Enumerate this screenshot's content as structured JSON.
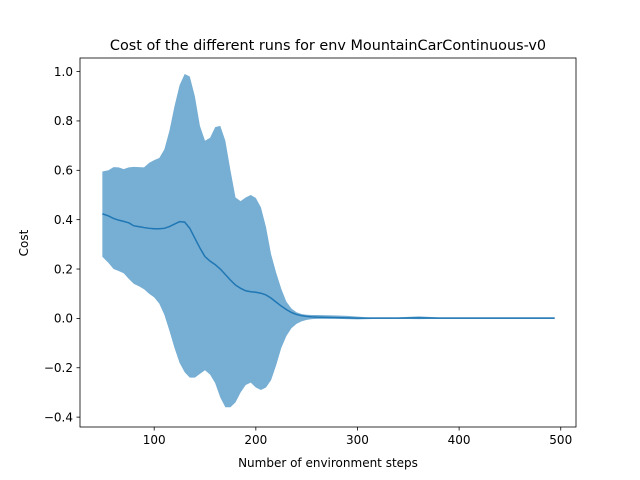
{
  "chart_data": {
    "type": "area",
    "title": "Cost of the different runs for env MountainCarContinuous-v0",
    "xlabel": "Number of environment steps",
    "ylabel": "Cost",
    "xlim": [
      27,
      515
    ],
    "ylim": [
      -0.44,
      1.055
    ],
    "xticks": [
      100,
      200,
      300,
      400,
      500
    ],
    "yticks": [
      -0.4,
      -0.2,
      0.0,
      0.2,
      0.4,
      0.6,
      0.8,
      1.0
    ],
    "grid": false,
    "legend": "none",
    "colors": {
      "line": "#1f77b4",
      "band": "#77aed3"
    },
    "x": [
      49,
      55,
      60,
      65,
      70,
      75,
      80,
      85,
      90,
      95,
      100,
      105,
      110,
      115,
      120,
      125,
      130,
      135,
      140,
      145,
      150,
      155,
      160,
      165,
      170,
      175,
      180,
      185,
      190,
      195,
      200,
      205,
      210,
      215,
      220,
      225,
      230,
      235,
      240,
      245,
      250,
      255,
      260,
      270,
      280,
      290,
      300,
      310,
      320,
      340,
      360,
      380,
      400,
      420,
      440,
      460,
      480,
      494
    ],
    "series": [
      {
        "mean": [
          0.424,
          0.415,
          0.405,
          0.398,
          0.393,
          0.387,
          0.375,
          0.372,
          0.368,
          0.365,
          0.363,
          0.363,
          0.365,
          0.372,
          0.382,
          0.392,
          0.39,
          0.365,
          0.325,
          0.285,
          0.25,
          0.232,
          0.218,
          0.2,
          0.178,
          0.155,
          0.135,
          0.122,
          0.112,
          0.108,
          0.106,
          0.102,
          0.095,
          0.082,
          0.066,
          0.05,
          0.036,
          0.024,
          0.016,
          0.011,
          0.008,
          0.006,
          0.005,
          0.004,
          0.003,
          0.002,
          0.001,
          0.001,
          0.001,
          0.001,
          0.002,
          0.001,
          0.001,
          0.001,
          0.001,
          0.001,
          0.001,
          0.001
        ],
        "upper": [
          0.595,
          0.6,
          0.613,
          0.612,
          0.605,
          0.612,
          0.614,
          0.613,
          0.612,
          0.63,
          0.641,
          0.65,
          0.685,
          0.76,
          0.86,
          0.945,
          0.99,
          0.98,
          0.9,
          0.78,
          0.72,
          0.732,
          0.775,
          0.78,
          0.72,
          0.6,
          0.49,
          0.475,
          0.49,
          0.5,
          0.488,
          0.45,
          0.37,
          0.26,
          0.185,
          0.12,
          0.068,
          0.04,
          0.025,
          0.018,
          0.015,
          0.014,
          0.014,
          0.013,
          0.012,
          0.01,
          0.007,
          0.004,
          0.004,
          0.004,
          0.008,
          0.004,
          0.004,
          0.004,
          0.004,
          0.004,
          0.004,
          0.004
        ],
        "lower": [
          0.25,
          0.225,
          0.2,
          0.192,
          0.183,
          0.16,
          0.14,
          0.13,
          0.118,
          0.1,
          0.085,
          0.06,
          0.015,
          -0.05,
          -0.12,
          -0.18,
          -0.218,
          -0.24,
          -0.24,
          -0.225,
          -0.21,
          -0.228,
          -0.262,
          -0.32,
          -0.36,
          -0.36,
          -0.34,
          -0.3,
          -0.27,
          -0.26,
          -0.28,
          -0.29,
          -0.28,
          -0.25,
          -0.19,
          -0.12,
          -0.072,
          -0.04,
          -0.022,
          -0.012,
          -0.006,
          -0.003,
          -0.002,
          -0.002,
          -0.002,
          -0.003,
          -0.004,
          -0.003,
          -0.002,
          -0.002,
          -0.003,
          -0.002,
          -0.002,
          -0.002,
          -0.002,
          -0.002,
          -0.002,
          -0.002
        ]
      }
    ]
  }
}
